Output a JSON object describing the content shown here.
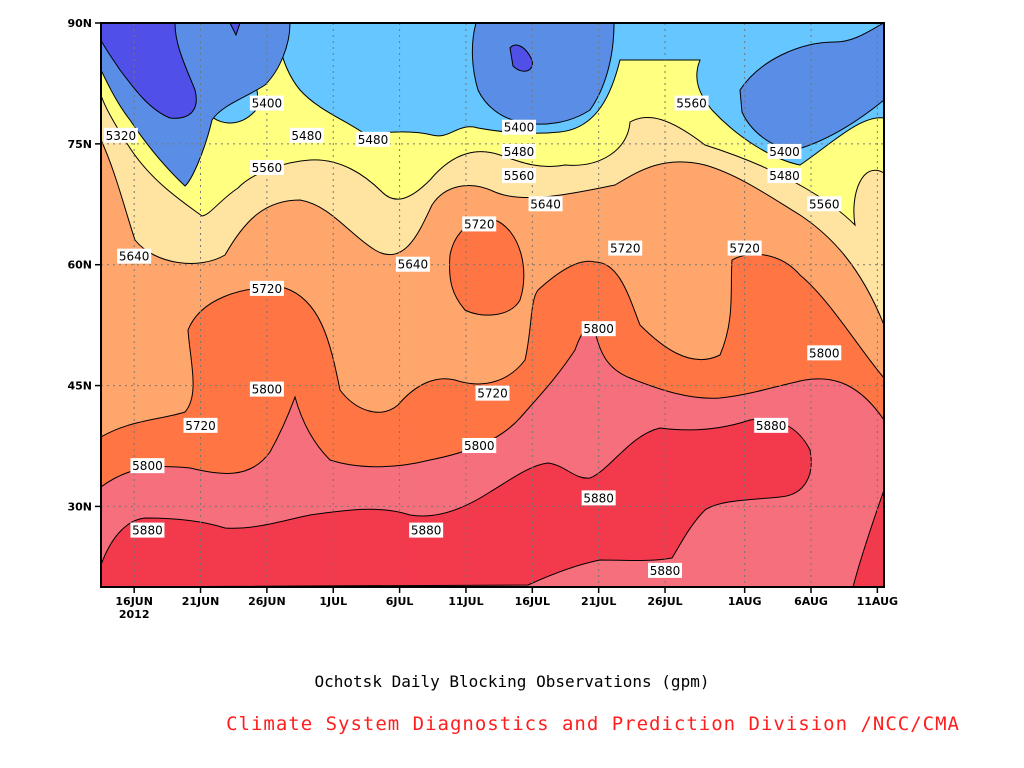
{
  "chart_data": {
    "type": "heatmap",
    "plot_subtype": "filled-contour (latitude-time)",
    "title": "Ochotsk Daily Blocking Observations (gpm)",
    "xlabel": "",
    "ylabel": "",
    "x_ticks": [
      "16JUN",
      "21JUN",
      "26JUN",
      "1JUL",
      "6JUL",
      "11JUL",
      "16JUL",
      "21JUL",
      "26JUL",
      "1AUG",
      "6AUG",
      "11AUG"
    ],
    "x_year_label": "2012",
    "y_ticks": [
      "90N",
      "75N",
      "60N",
      "45N",
      "30N"
    ],
    "ylim": [
      "20N",
      "90N"
    ],
    "grid": true,
    "contour_levels": [
      5320,
      5400,
      5480,
      5560,
      5640,
      5720,
      5800,
      5880
    ],
    "contour_labels": [
      {
        "text": "5320",
        "date": "15JUN",
        "lat": "76N"
      },
      {
        "text": "5400",
        "date": "26JUN",
        "lat": "80N"
      },
      {
        "text": "5480",
        "date": "29JUN",
        "lat": "76N"
      },
      {
        "text": "5480",
        "date": "4JUL",
        "lat": "75.5N"
      },
      {
        "text": "5560",
        "date": "26JUN",
        "lat": "72N"
      },
      {
        "text": "5640",
        "date": "16JUN",
        "lat": "61N"
      },
      {
        "text": "5720",
        "date": "26JUN",
        "lat": "57N"
      },
      {
        "text": "5640",
        "date": "7JUL",
        "lat": "60N"
      },
      {
        "text": "5720",
        "date": "12JUL",
        "lat": "65N"
      },
      {
        "text": "5400",
        "date": "15JUL",
        "lat": "77N"
      },
      {
        "text": "5480",
        "date": "15JUL",
        "lat": "74N"
      },
      {
        "text": "5560",
        "date": "15JUL",
        "lat": "71N"
      },
      {
        "text": "5640",
        "date": "17JUL",
        "lat": "67.5N"
      },
      {
        "text": "5720",
        "date": "23JUL",
        "lat": "62N"
      },
      {
        "text": "5800",
        "date": "21JUL",
        "lat": "52N"
      },
      {
        "text": "5560",
        "date": "28JUL",
        "lat": "80N"
      },
      {
        "text": "5720",
        "date": "1AUG",
        "lat": "62N"
      },
      {
        "text": "5400",
        "date": "4AUG",
        "lat": "74N"
      },
      {
        "text": "5480",
        "date": "4AUG",
        "lat": "71N"
      },
      {
        "text": "5560",
        "date": "7AUG",
        "lat": "67.5N"
      },
      {
        "text": "5800",
        "date": "7AUG",
        "lat": "49N"
      },
      {
        "text": "5880",
        "date": "3AUG",
        "lat": "40N"
      },
      {
        "text": "5800",
        "date": "12JUL",
        "lat": "37.5N"
      },
      {
        "text": "5720",
        "date": "13JUL",
        "lat": "44N"
      },
      {
        "text": "5800",
        "date": "26JUN",
        "lat": "44.5N"
      },
      {
        "text": "5720",
        "date": "21JUN",
        "lat": "40N"
      },
      {
        "text": "5800",
        "date": "17JUN",
        "lat": "35N"
      },
      {
        "text": "5880",
        "date": "17JUN",
        "lat": "27N"
      },
      {
        "text": "5880",
        "date": "8JUL",
        "lat": "27N"
      },
      {
        "text": "5880",
        "date": "21JUL",
        "lat": "31N"
      },
      {
        "text": "5880",
        "date": "26JUL",
        "lat": "22N"
      }
    ],
    "fill_colors": {
      "below_5320": "#5050e8",
      "5320_5400": "#5a8ee6",
      "5400_5480": "#66c6ff",
      "5480_5560": "#ffff80",
      "5560_5640": "#fee3a1",
      "5640_5720": "#ffa66c",
      "5720_5800": "#ff7644",
      "5800_5880": "#f56f7c",
      "above_5880": "#f33a4c"
    }
  },
  "caption": "Ochotsk Daily Blocking Observations (gpm)",
  "credit": {
    "text": "Climate System Diagnostics and Prediction Division /NCC/CMA",
    "color": "#ff1e1e"
  }
}
